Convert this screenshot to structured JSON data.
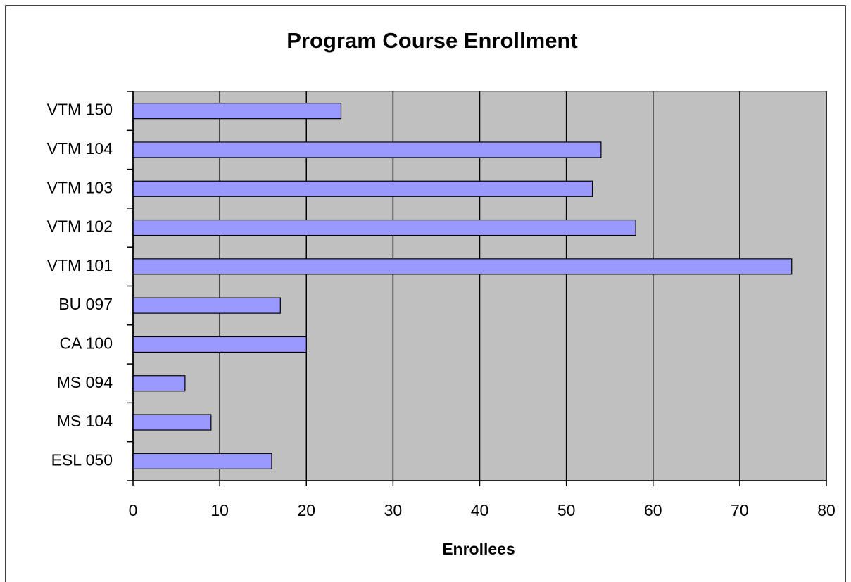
{
  "chart_data": {
    "type": "bar",
    "orientation": "horizontal",
    "title": "Program Course Enrollment",
    "x_label": "Enrollees",
    "categories": [
      "ESL 050",
      "MS 104",
      "MS 094",
      "CA 100",
      "BU 097",
      "VTM 101",
      "VTM 102",
      "VTM 103",
      "VTM 104",
      "VTM 150"
    ],
    "values": [
      16,
      9,
      6,
      20,
      17,
      76,
      58,
      53,
      54,
      24
    ],
    "color": "#9999ff",
    "background": "#c0c0c0",
    "xlim": [
      0,
      80
    ],
    "xticks": [
      0,
      10,
      20,
      30,
      40,
      50,
      60,
      70,
      80
    ],
    "grid": true
  }
}
